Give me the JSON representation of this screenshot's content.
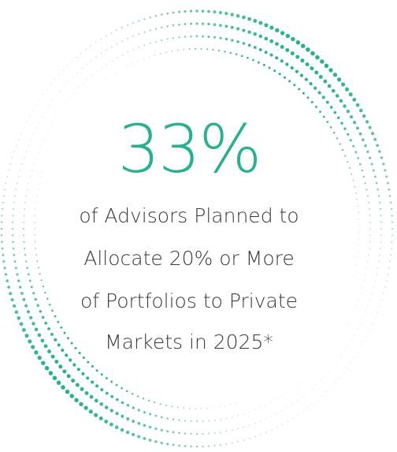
{
  "stat": "33%",
  "lines": [
    "of Advisors Planned to",
    "Allocate 20% or More",
    "of Portfolios to Private",
    "Markets in 2025*"
  ]
}
